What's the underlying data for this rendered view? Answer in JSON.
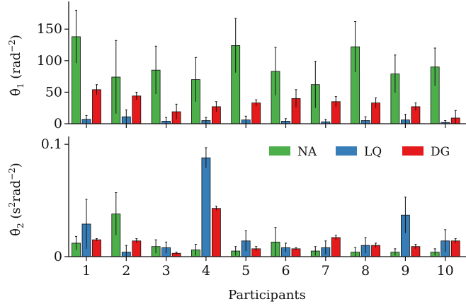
{
  "chart_data": [
    {
      "type": "bar",
      "ylabel": "θ̂₁ (rad⁻²)",
      "ylabel_parts": {
        "sym": "θ̂",
        "sub": "1",
        "pre": " (rad",
        "sup": "−2",
        "post": ")"
      },
      "categories": [
        "1",
        "2",
        "3",
        "4",
        "5",
        "6",
        "7",
        "8",
        "9",
        "10"
      ],
      "ylim": [
        0,
        185
      ],
      "yticks": [
        0,
        50,
        100,
        150
      ],
      "ytick_labels": [
        "0",
        "50",
        "100",
        "150"
      ],
      "series": [
        {
          "name": "NA",
          "color": "#4daf4a",
          "values": [
            138,
            74,
            85,
            70,
            124,
            83,
            62,
            122,
            79,
            90
          ],
          "errors": [
            42,
            58,
            38,
            35,
            43,
            38,
            37,
            40,
            30,
            30
          ]
        },
        {
          "name": "LQ",
          "color": "#377eb8",
          "values": [
            7,
            11,
            4,
            5,
            6,
            4,
            3,
            5,
            6,
            2
          ],
          "errors": [
            6,
            11,
            6,
            5,
            6,
            4,
            4,
            6,
            9,
            3
          ]
        },
        {
          "name": "DG",
          "color": "#e41a1c",
          "values": [
            54,
            44,
            19,
            27,
            33,
            40,
            35,
            33,
            27,
            9
          ],
          "errors": [
            8,
            6,
            12,
            8,
            5,
            14,
            8,
            8,
            6,
            12
          ]
        }
      ]
    },
    {
      "type": "bar",
      "ylabel": "θ̂₂ (s²rad⁻²)",
      "ylabel_parts": {
        "sym": "θ̂",
        "sub": "2",
        "pre": " (s",
        "sup1": "2",
        "mid": "rad",
        "sup": "−2",
        "post": ")"
      },
      "xlabel": "Participants",
      "categories": [
        "1",
        "2",
        "3",
        "4",
        "5",
        "6",
        "7",
        "8",
        "9",
        "10"
      ],
      "ylim": [
        0,
        0.102
      ],
      "yticks": [
        0,
        0.1
      ],
      "ytick_labels": [
        "0",
        "0.1"
      ],
      "legend": "top-right",
      "series": [
        {
          "name": "NA",
          "color": "#4daf4a",
          "values": [
            0.012,
            0.038,
            0.009,
            0.006,
            0.005,
            0.013,
            0.005,
            0.004,
            0.004,
            0.004
          ],
          "errors": [
            0.006,
            0.019,
            0.006,
            0.005,
            0.004,
            0.013,
            0.004,
            0.004,
            0.003,
            0.003
          ]
        },
        {
          "name": "LQ",
          "color": "#377eb8",
          "values": [
            0.029,
            0.004,
            0.008,
            0.088,
            0.014,
            0.008,
            0.008,
            0.01,
            0.037,
            0.014
          ],
          "errors": [
            0.022,
            0.006,
            0.005,
            0.009,
            0.009,
            0.004,
            0.006,
            0.007,
            0.016,
            0.01
          ]
        },
        {
          "name": "DG",
          "color": "#e41a1c",
          "values": [
            0.015,
            0.014,
            0.003,
            0.043,
            0.007,
            0.007,
            0.017,
            0.01,
            0.009,
            0.014
          ],
          "errors": [
            0.001,
            0.002,
            0.001,
            0.002,
            0.002,
            0.001,
            0.002,
            0.002,
            0.002,
            0.002
          ]
        }
      ]
    }
  ]
}
